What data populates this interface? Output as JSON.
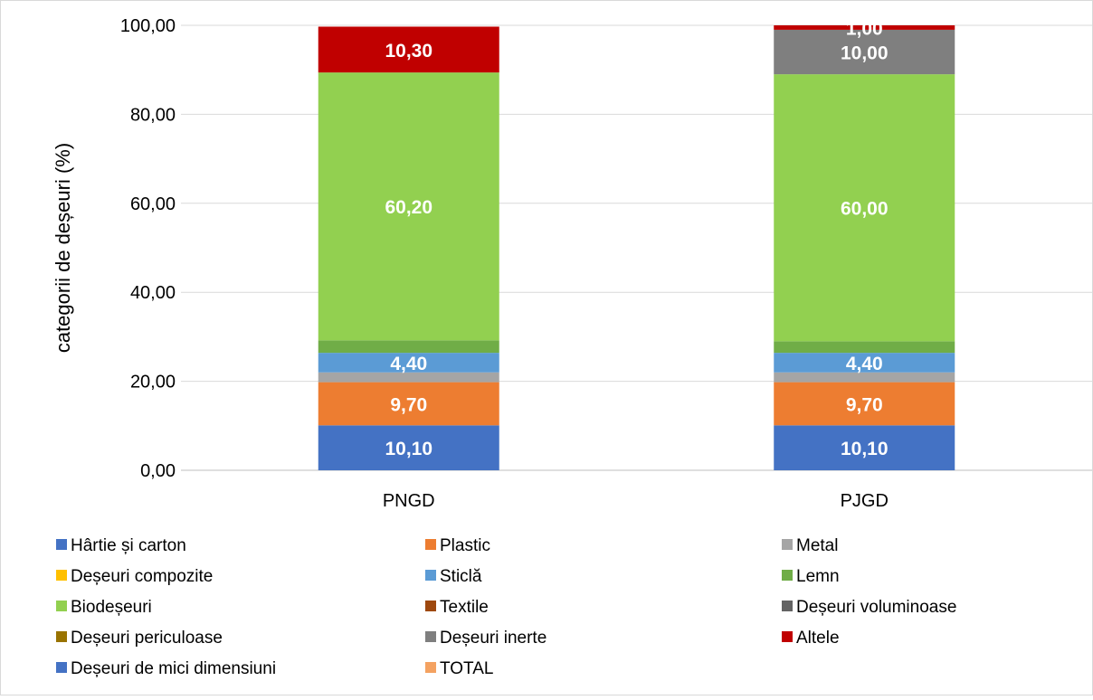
{
  "chart_data": {
    "type": "bar",
    "stacked": true,
    "categories": [
      "PNGD",
      "PJGD"
    ],
    "ylabel": "categorii de deșeuri (%)",
    "ylim": [
      0,
      100
    ],
    "yticks": [
      "0,00",
      "20,00",
      "40,00",
      "60,00",
      "80,00",
      "100,00"
    ],
    "grid": true,
    "legend_position": "bottom",
    "series": [
      {
        "name": "Hârtie și carton",
        "color": "#4472C4",
        "values": [
          10.1,
          10.1
        ],
        "labels": [
          "10,10",
          "10,10"
        ]
      },
      {
        "name": "Plastic",
        "color": "#ED7D31",
        "values": [
          9.7,
          9.7
        ],
        "labels": [
          "9,70",
          "9,70"
        ]
      },
      {
        "name": "Metal",
        "color": "#A5A5A5",
        "values": [
          2.2,
          2.2
        ],
        "labels": [
          "",
          ""
        ]
      },
      {
        "name": "Deșeuri compozite",
        "color": "#FFC000",
        "values": [
          0,
          0
        ],
        "labels": [
          "",
          ""
        ]
      },
      {
        "name": "Sticlă",
        "color": "#5B9BD5",
        "values": [
          4.4,
          4.4
        ],
        "labels": [
          "4,40",
          "4,40"
        ]
      },
      {
        "name": "Lemn",
        "color": "#70AD47",
        "values": [
          2.8,
          2.6
        ],
        "labels": [
          "",
          ""
        ]
      },
      {
        "name": "Biodeșeuri",
        "color": "#92D050",
        "values": [
          60.2,
          60.0
        ],
        "labels": [
          "60,20",
          "60,00"
        ]
      },
      {
        "name": "Textile",
        "color": "#9E480E",
        "values": [
          0,
          0
        ],
        "labels": [
          "",
          ""
        ]
      },
      {
        "name": "Deșeuri voluminoase",
        "color": "#636363",
        "values": [
          0,
          0
        ],
        "labels": [
          "",
          ""
        ]
      },
      {
        "name": "Deșeuri periculoase",
        "color": "#997300",
        "values": [
          0,
          0
        ],
        "labels": [
          "",
          ""
        ]
      },
      {
        "name": "Deșeuri inerte",
        "color": "#7F7F7F",
        "values": [
          0,
          10.0
        ],
        "labels": [
          "",
          "10,00"
        ]
      },
      {
        "name": "Altele",
        "color": "#C00000",
        "values": [
          10.3,
          1.0
        ],
        "labels": [
          "10,30",
          "1,00"
        ]
      },
      {
        "name": "Deșeuri de mici dimensiuni",
        "color": "#4472C4",
        "values": [
          0,
          0
        ],
        "labels": [
          "",
          ""
        ]
      },
      {
        "name": "TOTAL",
        "color": "#F4A261",
        "values": [
          0,
          0
        ],
        "labels": [
          "",
          ""
        ]
      }
    ]
  }
}
